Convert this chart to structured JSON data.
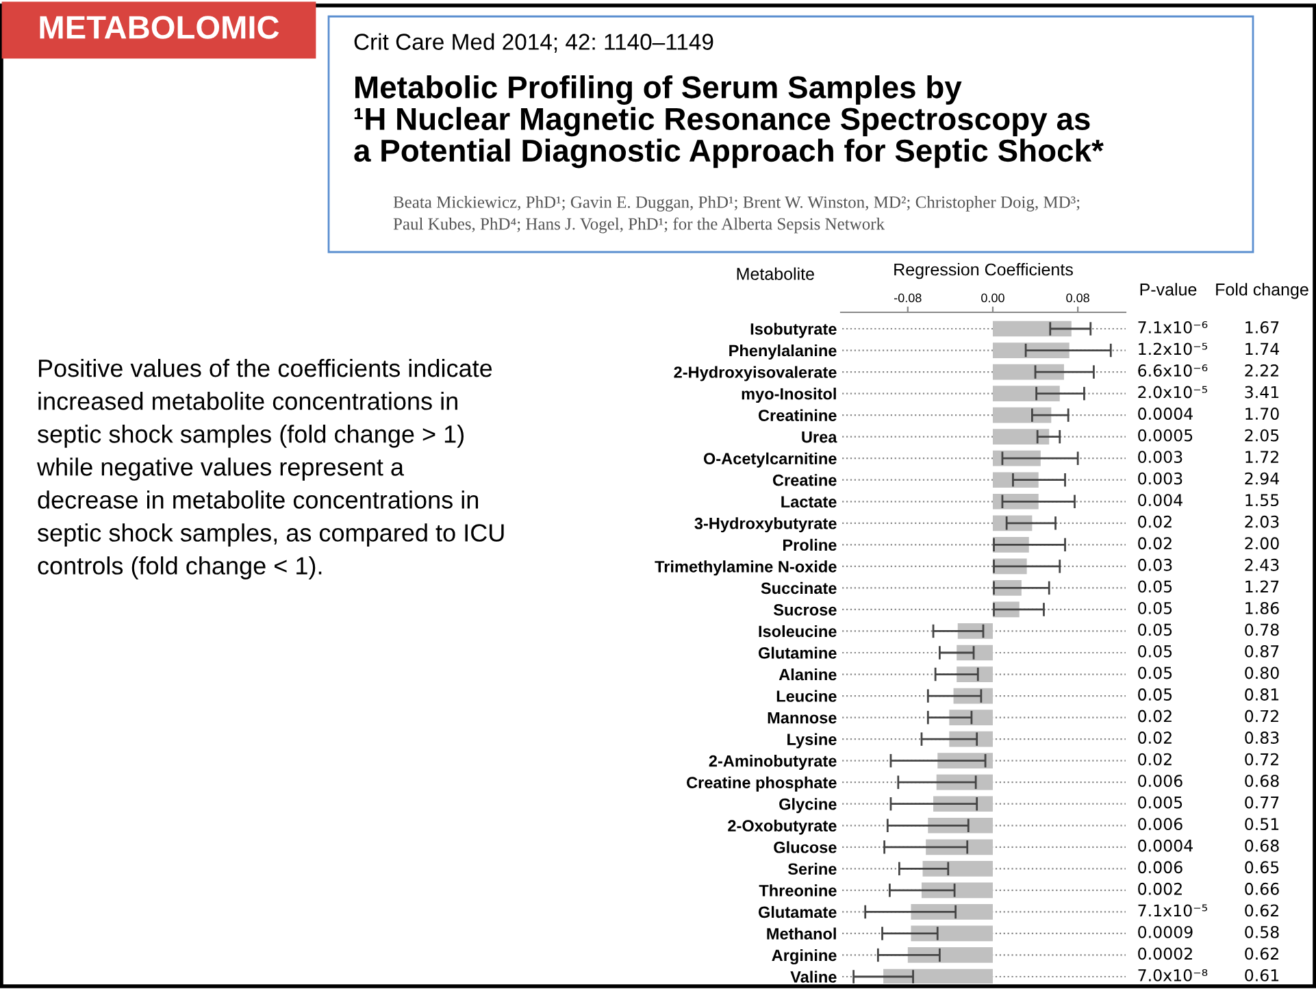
{
  "chart_data": [
    {
      "type": "other",
      "title": "METABOLOMIC",
      "annotations": [
        "Crit Care Med 2014; 42: 1140–1149",
        "Metabolic Profiling of Serum Samples by\n¹H Nuclear Magnetic Resonance Spectroscopy as\na Potential Diagnostic Approach for Septic Shock*",
        "Beata Mickiewicz, PhD¹; Gavin E. Duggan, PhD¹; Brent W. Winston, MD²; Christopher Doig, MD³;\nPaul Kubes, PhD⁴; Hans J. Vogel, PhD¹; for the Alberta Sepsis Network",
        "Positive values of the coefficients indicate\nincreased metabolite concentrations in\nseptic shock samples (fold change > 1)\nwhile negative values represent a\ndecrease in metabolite concentrations in\nseptic shock samples, as compared to ICU\ncontrols (fold change < 1)."
      ]
    },
    {
      "type": "bar",
      "orientation": "horizontal",
      "xlabel": "Regression Coefficients",
      "ylabel": "Metabolite",
      "categories": [
        "Isobutyrate",
        "Phenylalanine",
        "2-Hydroxyisovalerate",
        "myo-Inositol",
        "Creatinine",
        "Urea",
        "O-Acetylcarnitine",
        "Creatine",
        "Lactate",
        "3-Hydroxybutyrate",
        "Proline",
        "Trimethylamine N-oxide",
        "Succinate",
        "Sucrose",
        "Isoleucine",
        "Glutamine",
        "Alanine",
        "Leucine",
        "Mannose",
        "Lysine",
        "2-Aminobutyrate",
        "Creatine phosphate",
        "Glycine",
        "2-Oxobutyrate",
        "Glucose",
        "Serine",
        "Threonine",
        "Glutamate",
        "Methanol",
        "Arginine",
        "Valine"
      ],
      "color": "#c0c0c0",
      "values": [
        0.074,
        0.072,
        0.067,
        0.063,
        0.055,
        0.053,
        0.045,
        0.043,
        0.043,
        0.037,
        0.034,
        0.032,
        0.027,
        0.025,
        -0.033,
        -0.034,
        -0.034,
        -0.037,
        -0.041,
        -0.041,
        -0.052,
        -0.053,
        -0.056,
        -0.061,
        -0.063,
        -0.066,
        -0.067,
        -0.077,
        -0.077,
        -0.08,
        -0.103
      ],
      "errors": [
        [
          0.054,
          0.092
        ],
        [
          0.031,
          0.111
        ],
        [
          0.04,
          0.095
        ],
        [
          0.041,
          0.086
        ],
        [
          0.037,
          0.071
        ],
        [
          0.042,
          0.063
        ],
        [
          0.009,
          0.08
        ],
        [
          0.019,
          0.068
        ],
        [
          0.009,
          0.077
        ],
        [
          0.013,
          0.059
        ],
        [
          0.001,
          0.068
        ],
        [
          0.001,
          0.063
        ],
        [
          0.001,
          0.053
        ],
        [
          0.001,
          0.048
        ],
        [
          -0.056,
          -0.009
        ],
        [
          -0.05,
          -0.018
        ],
        [
          -0.054,
          -0.014
        ],
        [
          -0.061,
          -0.011
        ],
        [
          -0.061,
          -0.02
        ],
        [
          -0.067,
          -0.015
        ],
        [
          -0.096,
          -0.007
        ],
        [
          -0.089,
          -0.016
        ],
        [
          -0.096,
          -0.015
        ],
        [
          -0.099,
          -0.023
        ],
        [
          -0.102,
          -0.024
        ],
        [
          -0.088,
          -0.042
        ],
        [
          -0.097,
          -0.036
        ],
        [
          -0.12,
          -0.035
        ],
        [
          -0.104,
          -0.052
        ],
        [
          -0.108,
          -0.05
        ],
        [
          -0.131,
          -0.075
        ]
      ],
      "xlim": [
        -0.143,
        0.125
      ],
      "xticks": [
        {
          "value": -0.08,
          "label": "-0.08"
        },
        {
          "value": 0,
          "label": "0.00"
        },
        {
          "value": 0.08,
          "label": "0.08"
        }
      ],
      "grid": "y",
      "line_style": "dotted"
    },
    {
      "type": "other",
      "title": "P-value",
      "annotations": [
        "7.1x10⁻⁶",
        "1.2x10⁻⁵",
        "6.6x10⁻⁶",
        "2.0x10⁻⁵",
        "0.0004",
        "0.0005",
        "0.003",
        "0.003",
        "0.004",
        "0.02",
        "0.02",
        "0.03",
        "0.05",
        "0.05",
        "0.05",
        "0.05",
        "0.05",
        "0.05",
        "0.02",
        "0.02",
        "0.02",
        "0.006",
        "0.005",
        "0.006",
        "0.0004",
        "0.006",
        "0.002",
        "7.1x10⁻⁵",
        "0.0009",
        "0.0002",
        "7.0x10⁻⁸"
      ]
    },
    {
      "type": "other",
      "title": "Fold change",
      "annotations": [
        "1.67",
        "1.74",
        "2.22",
        "3.41",
        "1.70",
        "2.05",
        "1.72",
        "2.94",
        "1.55",
        "2.03",
        "2.00",
        "2.43",
        "1.27",
        "1.86",
        "0.78",
        "0.87",
        "0.80",
        "0.81",
        "0.72",
        "0.83",
        "0.72",
        "0.68",
        "0.77",
        "0.51",
        "0.68",
        "0.65",
        "0.66",
        "0.62",
        "0.58",
        "0.62",
        "0.61"
      ]
    }
  ]
}
